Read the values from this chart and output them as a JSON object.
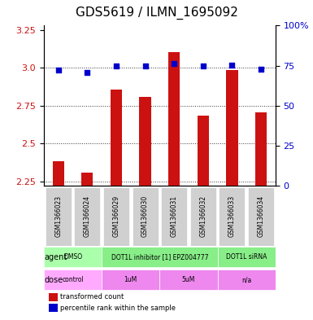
{
  "title": "GDS5619 / ILMN_1695092",
  "samples": [
    "GSM1366023",
    "GSM1366024",
    "GSM1366029",
    "GSM1366030",
    "GSM1366031",
    "GSM1366032",
    "GSM1366033",
    "GSM1366034"
  ],
  "bar_values": [
    2.385,
    2.305,
    2.855,
    2.81,
    3.105,
    2.685,
    2.985,
    2.705
  ],
  "dot_values": [
    72.5,
    71.0,
    75.0,
    75.0,
    76.5,
    75.0,
    75.5,
    73.0
  ],
  "ylim_left": [
    2.22,
    3.28
  ],
  "ylim_right": [
    0,
    100
  ],
  "yticks_left": [
    2.25,
    2.5,
    2.75,
    3.0,
    3.25
  ],
  "yticks_right": [
    0,
    25,
    50,
    75,
    100
  ],
  "ytick_labels_right": [
    "0",
    "25",
    "50",
    "75",
    "100%"
  ],
  "bar_color": "#cc1111",
  "dot_color": "#0000cc",
  "gridline_color": "#333333",
  "agent_row": [
    {
      "label": "DMSO",
      "span": [
        0,
        2
      ],
      "color": "#aaffaa"
    },
    {
      "label": "DOT1L inhibitor [1] EPZ004777",
      "span": [
        2,
        6
      ],
      "color": "#88ee88"
    },
    {
      "label": "DOT1L siRNA",
      "span": [
        6,
        8
      ],
      "color": "#88ee88"
    }
  ],
  "dose_row": [
    {
      "label": "control",
      "span": [
        0,
        2
      ],
      "color": "#ffaaff"
    },
    {
      "label": "1uM",
      "span": [
        2,
        4
      ],
      "color": "#ee88ee"
    },
    {
      "label": "5uM",
      "span": [
        4,
        6
      ],
      "color": "#ee88ee"
    },
    {
      "label": "n/a",
      "span": [
        6,
        8
      ],
      "color": "#ee88ee"
    }
  ],
  "legend_items": [
    {
      "color": "#cc1111",
      "label": "transformed count"
    },
    {
      "color": "#0000cc",
      "label": "percentile rank within the sample"
    }
  ],
  "agent_label": "agent",
  "dose_label": "dose",
  "sample_box_color": "#d0d0d0",
  "title_fontsize": 11,
  "tick_fontsize": 8,
  "label_fontsize": 8
}
